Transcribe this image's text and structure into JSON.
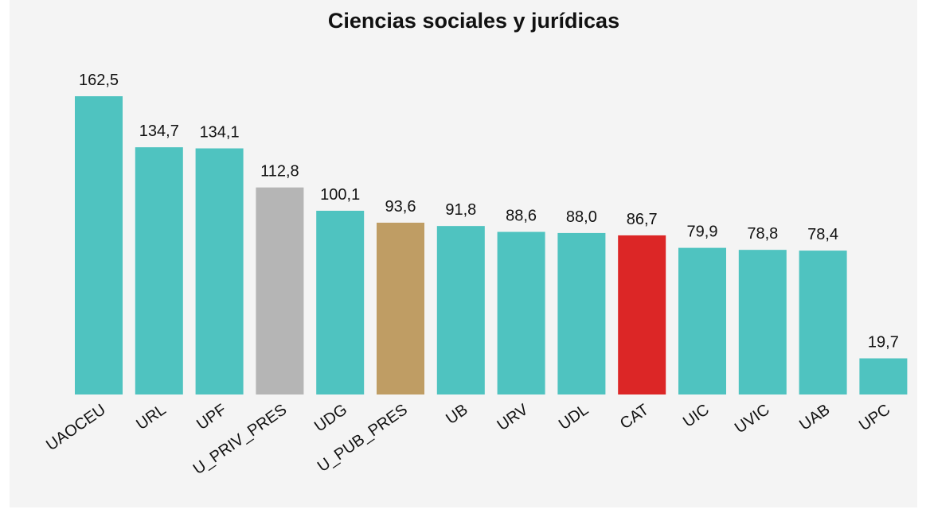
{
  "chart_data": {
    "type": "bar",
    "title": "Ciencias sociales y jurídicas",
    "categories": [
      "UAOCEU",
      "URL",
      "UPF",
      "U_PRIV_PRES",
      "UDG",
      "U_PUB_PRES",
      "UB",
      "URV",
      "UDL",
      "CAT",
      "UIC",
      "UVIC",
      "UAB",
      "UPC"
    ],
    "values": [
      162.5,
      134.7,
      134.1,
      112.8,
      100.1,
      93.6,
      91.8,
      88.6,
      88.0,
      86.7,
      79.9,
      78.8,
      78.4,
      19.7
    ],
    "value_labels": [
      "162,5",
      "134,7",
      "134,1",
      "112,8",
      "100,1",
      "93,6",
      "91,8",
      "88,6",
      "88,0",
      "86,7",
      "79,9",
      "78,8",
      "78,4",
      "19,7"
    ],
    "colors": [
      "#4fc3c0",
      "#4fc3c0",
      "#4fc3c0",
      "#b5b5b5",
      "#4fc3c0",
      "#bf9d64",
      "#4fc3c0",
      "#4fc3c0",
      "#4fc3c0",
      "#dc2626",
      "#4fc3c0",
      "#4fc3c0",
      "#4fc3c0",
      "#4fc3c0"
    ]
  }
}
